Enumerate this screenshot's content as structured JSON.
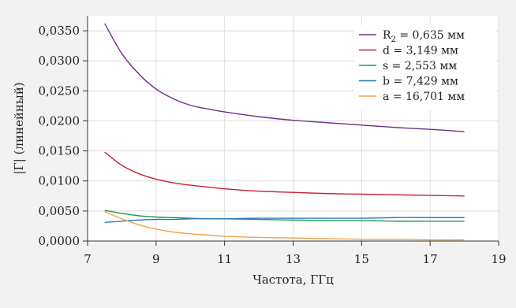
{
  "chart_data": {
    "type": "line",
    "xlabel": "Частота, ГГц",
    "ylabel": "|Γ| (линейный)",
    "xlim": [
      7,
      19
    ],
    "ylim": [
      0,
      0.0375
    ],
    "xticks": [
      "7",
      "9",
      "11",
      "13",
      "15",
      "17",
      "19"
    ],
    "xtick_values": [
      7,
      9,
      11,
      13,
      15,
      17,
      19
    ],
    "yticks": [
      "0,0000",
      "0,0050",
      "0,0100",
      "0,0150",
      "0,0200",
      "0,0250",
      "0,0300",
      "0,0350"
    ],
    "ytick_values": [
      0,
      0.005,
      0.01,
      0.015,
      0.02,
      0.025,
      0.03,
      0.035
    ],
    "grid": true,
    "legend_position": "top-right",
    "x": [
      7.5,
      8,
      8.5,
      9,
      9.5,
      10,
      10.5,
      11,
      12,
      13,
      14,
      15,
      16,
      17,
      18
    ],
    "series": [
      {
        "name": "R",
        "name_sub": "2",
        "name_rest": " = 0,635 мм",
        "color": "#6a2f8c",
        "values": [
          0.0362,
          0.0312,
          0.0278,
          0.0253,
          0.0237,
          0.0226,
          0.022,
          0.0215,
          0.0207,
          0.0201,
          0.0197,
          0.0193,
          0.0189,
          0.0186,
          0.0182
        ]
      },
      {
        "name": "d = 3,149 мм",
        "color": "#cc1f3a",
        "values": [
          0.0148,
          0.0126,
          0.0112,
          0.0103,
          0.0097,
          0.0093,
          0.009,
          0.0087,
          0.0083,
          0.0081,
          0.0079,
          0.0078,
          0.0077,
          0.0076,
          0.0075
        ]
      },
      {
        "name": "s = 2,553 мм",
        "color": "#1a9a5a",
        "values": [
          0.0051,
          0.0046,
          0.0042,
          0.004,
          0.0039,
          0.0038,
          0.0037,
          0.0037,
          0.0036,
          0.0035,
          0.0034,
          0.0034,
          0.0033,
          0.0033,
          0.0033
        ]
      },
      {
        "name": "b = 7,429 мм",
        "color": "#2a7ac0",
        "values": [
          0.0031,
          0.0033,
          0.0035,
          0.0036,
          0.0036,
          0.0037,
          0.0037,
          0.0037,
          0.0038,
          0.0038,
          0.0038,
          0.0038,
          0.0039,
          0.0039,
          0.0039
        ]
      },
      {
        "name": "a = 16,701 мм",
        "color": "#f0a050",
        "values": [
          0.0049,
          0.0037,
          0.0027,
          0.002,
          0.0015,
          0.0012,
          0.001,
          0.0008,
          0.0006,
          0.0005,
          0.0004,
          0.0003,
          0.0003,
          0.0002,
          0.0002
        ]
      }
    ]
  }
}
